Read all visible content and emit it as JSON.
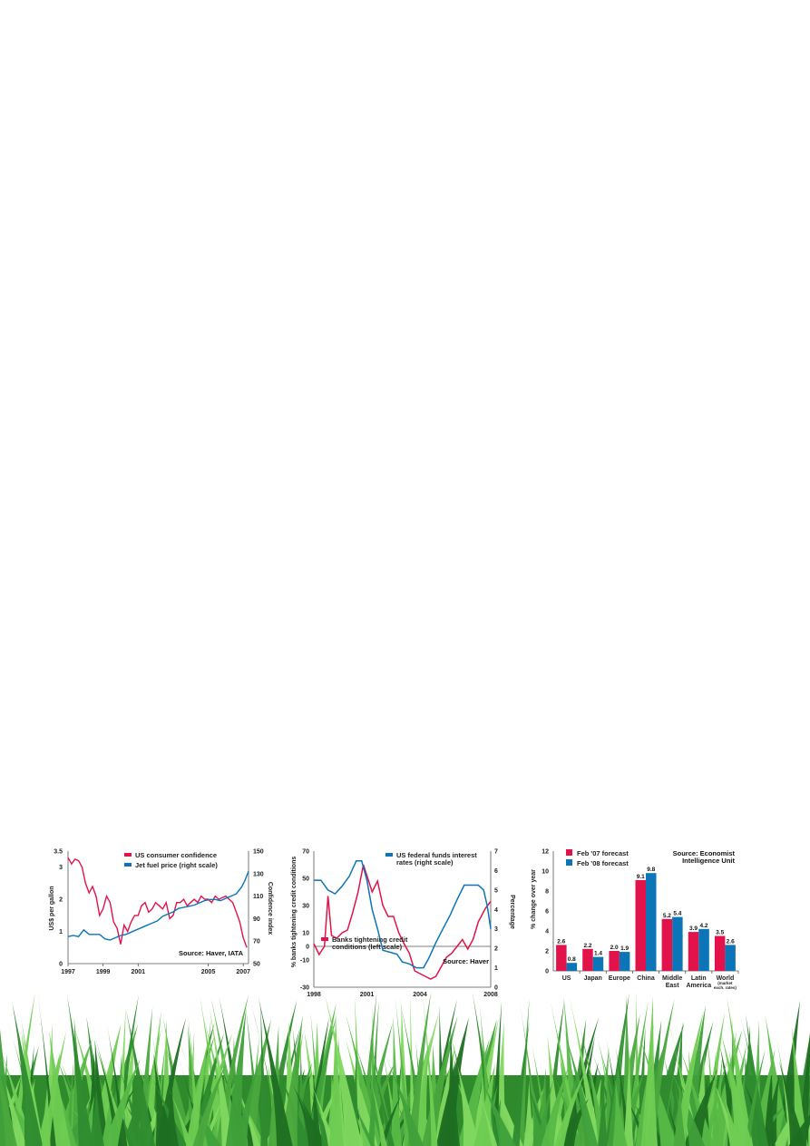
{
  "colors": {
    "red": "#e2134a",
    "blue": "#0b75b8",
    "grass_dark": "#1f6e22",
    "grass_light": "#6ccf4f"
  },
  "chart_data": [
    {
      "type": "line",
      "xlabel": "",
      "ylabel": "US$ per gallon",
      "ylabel_right": "Confidence index",
      "xlim": [
        1997,
        2007.3
      ],
      "ylim": [
        0,
        3.5
      ],
      "ylim_right": [
        50,
        150
      ],
      "x_ticks": [
        "1997",
        "1999",
        "2001",
        "2005",
        "2007"
      ],
      "y_ticks": [
        "0",
        "1",
        "2",
        "3",
        "3.5"
      ],
      "y_ticks_right": [
        "50",
        "70",
        "90",
        "110",
        "130",
        "150"
      ],
      "legend_position": "top-right",
      "source": "Source: Haver, IATA",
      "series": [
        {
          "name": "US consumer confidence",
          "color": "#e2134a",
          "axis": "left",
          "x": [
            1997.0,
            1997.2,
            1997.4,
            1997.6,
            1997.8,
            1998.0,
            1998.2,
            1998.4,
            1998.6,
            1998.8,
            1999.0,
            1999.2,
            1999.4,
            1999.6,
            1999.8,
            2000.0,
            2000.2,
            2000.4,
            2000.6,
            2000.8,
            2001.0,
            2001.2,
            2001.4,
            2001.6,
            2001.8,
            2002.0,
            2002.2,
            2002.4,
            2002.6,
            2002.8,
            2003.0,
            2003.2,
            2003.4,
            2003.6,
            2003.8,
            2004.0,
            2004.2,
            2004.4,
            2004.6,
            2004.8,
            2005.0,
            2005.2,
            2005.4,
            2005.6,
            2005.8,
            2006.0,
            2006.2,
            2006.4,
            2006.6,
            2006.8,
            2007.0,
            2007.2
          ],
          "y": [
            3.3,
            3.1,
            3.25,
            3.2,
            3.0,
            2.5,
            2.2,
            2.4,
            2.1,
            1.5,
            1.7,
            2.1,
            1.9,
            1.3,
            1.1,
            0.6,
            1.2,
            1.0,
            1.3,
            1.5,
            1.5,
            1.8,
            1.9,
            1.6,
            1.7,
            1.9,
            1.8,
            1.7,
            1.9,
            1.4,
            1.5,
            1.9,
            1.9,
            2.0,
            1.8,
            1.9,
            2.0,
            1.9,
            2.1,
            2.0,
            2.0,
            1.9,
            2.1,
            2.0,
            2.05,
            2.1,
            2.0,
            1.9,
            1.6,
            1.3,
            0.8,
            0.5
          ]
        },
        {
          "name": "Jet fuel price (right scale)",
          "color": "#0b75b8",
          "axis": "right",
          "x": [
            1997.0,
            1997.3,
            1997.6,
            1997.9,
            1998.2,
            1998.5,
            1998.8,
            1999.1,
            1999.4,
            1999.7,
            2000.0,
            2000.3,
            2000.6,
            2000.9,
            2001.2,
            2001.5,
            2001.8,
            2002.1,
            2002.4,
            2002.7,
            2003.0,
            2003.3,
            2003.6,
            2003.9,
            2004.2,
            2004.5,
            2004.8,
            2005.1,
            2005.4,
            2005.7,
            2006.0,
            2006.3,
            2006.6,
            2006.9,
            2007.1,
            2007.3
          ],
          "y": [
            74,
            75,
            74,
            80,
            76,
            76,
            76,
            72,
            71,
            73,
            75,
            76,
            78,
            80,
            82,
            84,
            86,
            88,
            92,
            94,
            96,
            99,
            100,
            101,
            102,
            104,
            106,
            107,
            107,
            106,
            108,
            110,
            112,
            118,
            124,
            132
          ]
        }
      ]
    },
    {
      "type": "line",
      "xlabel": "",
      "ylabel": "% banks tightening credit conditions",
      "ylabel_right": "Percentage",
      "xlim": [
        1998,
        2008
      ],
      "ylim": [
        -30,
        70
      ],
      "ylim_right": [
        0,
        7
      ],
      "x_ticks": [
        "1998",
        "2001",
        "2004",
        "2008"
      ],
      "y_ticks": [
        "-30",
        "-10",
        "10",
        "30",
        "50",
        "70"
      ],
      "y_ticks_right": [
        "0",
        "1",
        "2",
        "3",
        "4",
        "5",
        "6",
        "7"
      ],
      "source": "Source: Haver",
      "series": [
        {
          "name": "Banks tightening credit conditions (left scale)",
          "color": "#e2134a",
          "axis": "left",
          "x": [
            1998.0,
            1998.3,
            1998.6,
            1998.8,
            1999.0,
            1999.3,
            1999.6,
            1999.9,
            2000.2,
            2000.5,
            2000.8,
            2001.0,
            2001.3,
            2001.6,
            2001.9,
            2002.2,
            2002.5,
            2002.8,
            2003.1,
            2003.4,
            2003.7,
            2004.0,
            2004.3,
            2004.6,
            2004.9,
            2005.2,
            2005.5,
            2005.8,
            2006.1,
            2006.4,
            2006.7,
            2007.0,
            2007.3,
            2007.7,
            2008.0
          ],
          "y": [
            2,
            -6,
            0,
            37,
            8,
            6,
            10,
            12,
            25,
            40,
            60,
            52,
            40,
            48,
            30,
            22,
            22,
            10,
            2,
            -5,
            -18,
            -20,
            -22,
            -24,
            -22,
            -15,
            -8,
            -5,
            0,
            5,
            -2,
            5,
            18,
            28,
            33
          ]
        },
        {
          "name": "US federal funds interest rates (right scale)",
          "color": "#0b75b8",
          "axis": "right",
          "x": [
            1998.0,
            1998.4,
            1998.8,
            1999.2,
            1999.6,
            2000.0,
            2000.4,
            2000.7,
            2001.0,
            2001.3,
            2001.6,
            2001.9,
            2002.3,
            2002.7,
            2003.0,
            2003.4,
            2003.8,
            2004.2,
            2004.5,
            2004.9,
            2005.3,
            2005.7,
            2006.1,
            2006.5,
            2006.9,
            2007.3,
            2007.6,
            2007.8,
            2008.0
          ],
          "y": [
            5.5,
            5.5,
            5.0,
            4.8,
            5.2,
            5.7,
            6.5,
            6.5,
            5.5,
            4.0,
            3.0,
            1.9,
            1.8,
            1.7,
            1.3,
            1.2,
            1.0,
            1.0,
            1.5,
            2.3,
            3.0,
            3.7,
            4.5,
            5.25,
            5.25,
            5.25,
            5.0,
            4.2,
            3.0
          ]
        }
      ]
    },
    {
      "type": "bar",
      "categories": [
        "US",
        "Japan",
        "Europe",
        "China",
        "Middle East",
        "Latin America",
        "World"
      ],
      "category_note": "(market exch. rates)",
      "ylabel": "% change over year",
      "ylim": [
        0,
        12
      ],
      "y_ticks": [
        "0",
        "2",
        "4",
        "6",
        "8",
        "10",
        "12"
      ],
      "legend_position": "top-left",
      "source": "Source: Economist Intelligence Unit",
      "series": [
        {
          "name": "Feb '07 forecast",
          "color": "#e2134a",
          "values": [
            2.6,
            2.2,
            2.0,
            9.1,
            5.2,
            3.9,
            3.5
          ],
          "labels": [
            "2.6",
            "2.2",
            "2.0",
            "9.1",
            "5.2",
            "3.9",
            "3.5"
          ]
        },
        {
          "name": "Feb '08 forecast",
          "color": "#0b75b8",
          "values": [
            0.8,
            1.4,
            1.9,
            9.8,
            5.4,
            4.2,
            2.6
          ],
          "labels": [
            "0.8",
            "1.4",
            "1.9",
            "9.8",
            "5.4",
            "4.2",
            "2.6"
          ]
        }
      ]
    }
  ]
}
